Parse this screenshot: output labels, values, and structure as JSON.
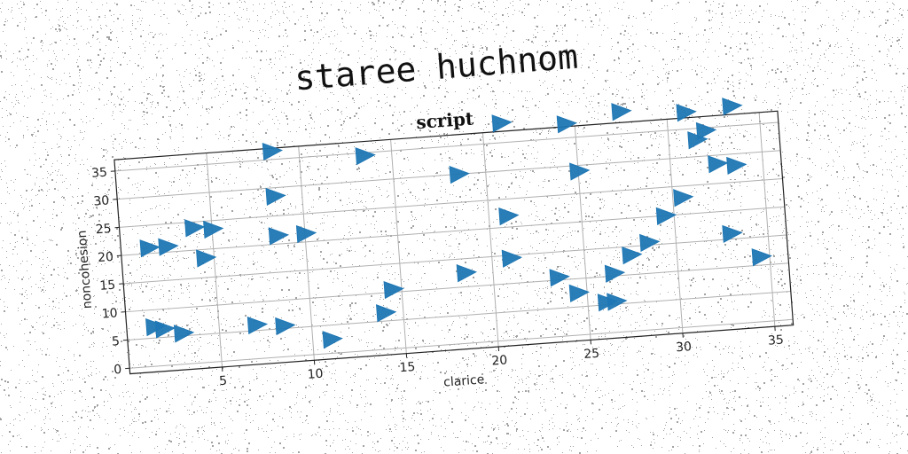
{
  "page_title": "staree huchnom",
  "chart_data": {
    "type": "scatter",
    "title": "script",
    "xlabel": "clarice",
    "ylabel": "noncohesion",
    "xlim": [
      0,
      36
    ],
    "ylim": [
      -1,
      37
    ],
    "xticks": [
      5,
      10,
      15,
      20,
      25,
      30,
      35
    ],
    "yticks": [
      0,
      5,
      10,
      15,
      20,
      25,
      30,
      35
    ],
    "grid": true,
    "marker": "triangle-right",
    "color": "#1f77b4",
    "x": [
      1.5,
      2.5,
      4,
      5,
      4.5,
      8.5,
      8.5,
      8.5,
      10,
      13.5,
      18.5,
      21,
      21,
      24.5,
      25,
      27.5,
      31,
      33.5,
      32,
      31.5,
      32.5,
      33.5,
      30.5,
      29.5,
      28.5,
      27.5,
      33,
      34.5,
      21,
      18.5,
      14.5,
      14,
      11,
      26.5,
      26,
      24.5,
      23.5,
      26.5,
      1.5,
      2,
      3,
      7,
      8.5
    ],
    "y": [
      21,
      21,
      24,
      23.5,
      18.5,
      36.5,
      28.5,
      21.5,
      21.5,
      34.5,
      30,
      38.5,
      22,
      37.5,
      29,
      39,
      38,
      38.5,
      34.5,
      33,
      28.5,
      28,
      23,
      20,
      15.5,
      13.5,
      16,
      11.5,
      14.5,
      12.5,
      10.5,
      6.5,
      2.5,
      10.5,
      5.5,
      7.5,
      10.5,
      5.5,
      7,
      6.5,
      5.5,
      6,
      5.5
    ]
  }
}
